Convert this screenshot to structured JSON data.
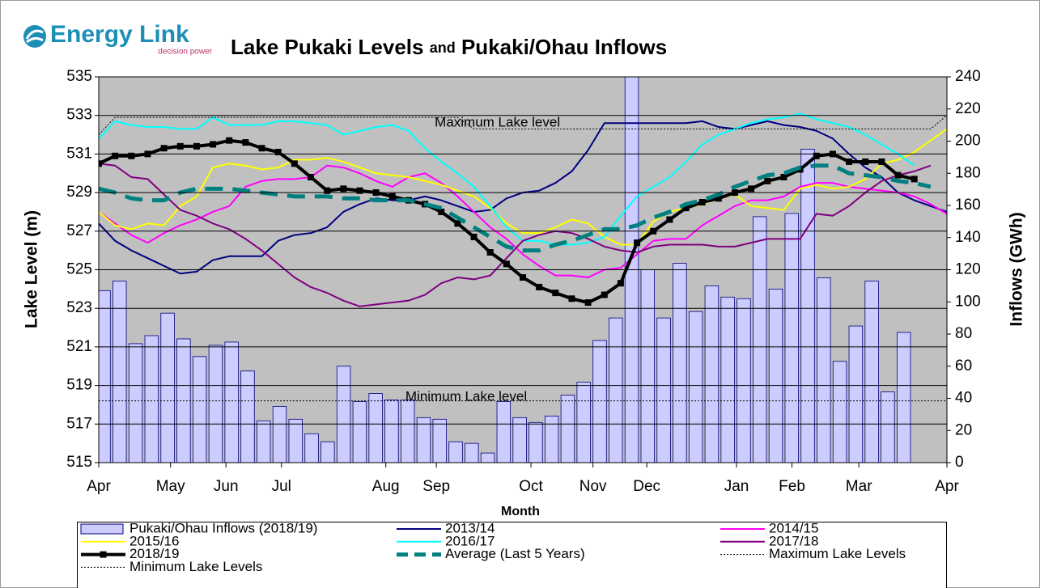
{
  "logo": {
    "name": "Energy Link",
    "tagline": "decision power"
  },
  "chart_data": {
    "type": "bar-line",
    "title_parts": [
      "Lake Pukaki Levels",
      "and",
      "Pukaki/Ohau Inflows"
    ],
    "xlabel": "Month",
    "ylabel": "Lake Level (m)",
    "y2label": "Inflows (GWh)",
    "xlim": [
      0,
      52
    ],
    "xticks": [
      {
        "value": 0,
        "label": "Apr"
      },
      {
        "value": 4.4,
        "label": "May"
      },
      {
        "value": 7.8,
        "label": "Jun"
      },
      {
        "value": 11.2,
        "label": "Jul"
      },
      {
        "value": 17.6,
        "label": "Aug"
      },
      {
        "value": 20.7,
        "label": "Sep"
      },
      {
        "value": 26.5,
        "label": "Oct"
      },
      {
        "value": 30.3,
        "label": "Nov"
      },
      {
        "value": 33.6,
        "label": "Dec"
      },
      {
        "value": 39.1,
        "label": "Jan"
      },
      {
        "value": 42.5,
        "label": "Feb"
      },
      {
        "value": 46.6,
        "label": "Mar"
      },
      {
        "value": 52,
        "label": "Apr"
      }
    ],
    "ylim": [
      515,
      535
    ],
    "yticks": [
      515,
      517,
      519,
      521,
      523,
      525,
      527,
      529,
      531,
      533,
      535
    ],
    "y2lim": [
      0,
      240
    ],
    "y2ticks": [
      0,
      20,
      40,
      60,
      80,
      100,
      120,
      140,
      160,
      180,
      200,
      220,
      240
    ],
    "grid": true,
    "annotations": [
      {
        "text": "Maximum Lake level",
        "x": 20.6,
        "y": 532.6
      },
      {
        "text": "Minimum Lake level",
        "x": 18.8,
        "y": 518.4
      }
    ],
    "bars": {
      "name": "Pukaki/Ohau Inflows (2018/19)",
      "color": "#ccccff",
      "axis": "y2",
      "values": [
        107,
        113,
        74,
        79,
        93,
        77,
        66,
        73,
        75,
        57,
        26,
        35,
        27,
        18,
        13,
        60,
        38,
        43,
        39,
        39,
        28,
        27,
        13,
        12,
        6,
        38,
        28,
        25,
        29,
        42,
        50,
        76,
        90,
        260,
        120,
        90,
        124,
        94,
        110,
        103,
        102,
        153,
        108,
        155,
        195,
        115,
        63,
        85,
        113,
        44,
        81,
        0
      ]
    },
    "x": [
      0,
      1,
      2,
      3,
      4,
      5,
      6,
      7,
      8,
      9,
      10,
      11,
      12,
      13,
      14,
      15,
      16,
      17,
      18,
      19,
      20,
      21,
      22,
      23,
      24,
      25,
      26,
      27,
      28,
      29,
      30,
      31,
      32,
      33,
      34,
      35,
      36,
      37,
      38,
      39,
      40,
      41,
      42,
      43,
      44,
      45,
      46,
      47,
      48,
      49,
      50,
      51,
      52
    ],
    "series": [
      {
        "name": "2013/14",
        "color": "#000080",
        "width": 2,
        "values": [
          527.4,
          526.5,
          526.0,
          525.6,
          525.2,
          524.8,
          524.9,
          525.5,
          525.7,
          525.7,
          525.7,
          526.5,
          526.8,
          526.9,
          527.2,
          528.0,
          528.4,
          528.7,
          528.6,
          528.6,
          528.8,
          528.6,
          528.3,
          528.0,
          528.1,
          528.7,
          529.0,
          529.1,
          529.5,
          530.1,
          531.2,
          532.6,
          532.6,
          532.6,
          532.6,
          532.6,
          532.6,
          532.7,
          532.4,
          532.3,
          532.5,
          532.7,
          532.5,
          532.4,
          532.2,
          531.8,
          531.0,
          530.3,
          529.8,
          529.0,
          528.6,
          528.3,
          528.0
        ]
      },
      {
        "name": "2014/15",
        "color": "#ff00ff",
        "width": 2,
        "values": [
          528.0,
          527.4,
          526.8,
          526.4,
          526.9,
          527.3,
          527.6,
          528.0,
          528.3,
          529.3,
          529.6,
          529.7,
          529.7,
          529.8,
          530.4,
          530.3,
          530.0,
          529.6,
          529.3,
          529.8,
          530.0,
          529.5,
          528.8,
          528.0,
          527.2,
          526.6,
          525.8,
          525.2,
          524.7,
          524.7,
          524.6,
          525.0,
          525.1,
          525.8,
          526.5,
          526.6,
          526.6,
          527.3,
          527.8,
          528.3,
          528.6,
          528.6,
          528.8,
          529.3,
          529.5,
          529.5,
          529.3,
          529.2,
          529.1,
          529.0,
          528.8,
          528.4,
          527.9
        ]
      },
      {
        "name": "2015/16",
        "color": "#ffff00",
        "width": 2,
        "values": [
          528.0,
          527.3,
          527.1,
          527.4,
          527.3,
          528.3,
          528.8,
          530.3,
          530.5,
          530.4,
          530.2,
          530.3,
          530.7,
          530.7,
          530.8,
          530.6,
          530.3,
          530.0,
          529.9,
          529.8,
          529.6,
          529.4,
          529.1,
          528.8,
          528.2,
          527.4,
          526.9,
          526.9,
          527.2,
          527.6,
          527.4,
          526.7,
          526.3,
          526.3,
          527.5,
          528.0,
          528.2,
          528.4,
          528.7,
          528.9,
          528.3,
          528.2,
          528.1,
          529.2,
          529.4,
          529.2,
          529.3,
          529.7,
          530.5,
          530.7,
          531.1,
          531.7,
          532.3
        ]
      },
      {
        "name": "2016/17",
        "color": "#00ffff",
        "width": 2,
        "values": [
          531.8,
          532.7,
          532.5,
          532.4,
          532.4,
          532.3,
          532.3,
          532.9,
          532.5,
          532.5,
          532.5,
          532.7,
          532.7,
          532.6,
          532.5,
          532.0,
          532.2,
          532.4,
          532.5,
          532.2,
          531.3,
          530.6,
          530.0,
          529.3,
          528.3,
          527.2,
          526.5,
          526.5,
          526.3,
          526.3,
          526.4,
          526.7,
          527.8,
          528.8,
          529.3,
          529.8,
          530.6,
          531.5,
          532.0,
          532.3,
          532.6,
          532.8,
          532.9,
          533.1,
          532.8,
          532.6,
          532.4,
          532.0,
          531.5,
          531.0,
          530.4,
          null,
          null
        ]
      },
      {
        "name": "2017/18",
        "color": "#800080",
        "width": 2,
        "values": [
          530.5,
          530.4,
          529.8,
          529.7,
          528.9,
          528.1,
          527.8,
          527.4,
          527.1,
          526.6,
          526.0,
          525.3,
          524.6,
          524.1,
          523.8,
          523.4,
          523.1,
          523.2,
          523.3,
          523.4,
          523.7,
          524.3,
          524.6,
          524.5,
          524.7,
          525.6,
          526.5,
          526.8,
          527.0,
          526.9,
          526.6,
          526.2,
          526.0,
          525.9,
          526.2,
          526.3,
          526.3,
          526.3,
          526.2,
          526.2,
          526.4,
          526.6,
          526.6,
          526.6,
          527.9,
          527.8,
          528.3,
          529.0,
          529.6,
          529.9,
          530.1,
          530.4,
          null
        ]
      },
      {
        "name": "2018/19",
        "color": "#000000",
        "width": 4,
        "markers": true,
        "values": [
          530.5,
          530.9,
          530.9,
          531.0,
          531.3,
          531.4,
          531.4,
          531.5,
          531.7,
          531.6,
          531.3,
          531.1,
          530.5,
          529.8,
          529.1,
          529.2,
          529.1,
          529.0,
          528.8,
          528.6,
          528.4,
          528.0,
          527.4,
          526.7,
          525.9,
          525.3,
          524.6,
          524.1,
          523.8,
          523.5,
          523.3,
          523.7,
          524.3,
          526.4,
          527.0,
          527.6,
          528.2,
          528.5,
          528.7,
          529.0,
          529.2,
          529.6,
          529.8,
          530.2,
          530.9,
          531.0,
          530.6,
          530.6,
          530.6,
          529.9,
          529.7,
          null,
          null
        ]
      },
      {
        "name": "Average (Last 5 Years)",
        "color": "#008080",
        "width": 5,
        "dash": "dashed",
        "values": [
          529.2,
          529.0,
          528.7,
          528.6,
          528.6,
          529.0,
          529.2,
          529.2,
          529.2,
          529.1,
          529.0,
          528.9,
          528.8,
          528.8,
          528.8,
          528.7,
          528.7,
          528.6,
          528.6,
          528.6,
          528.4,
          528.2,
          527.7,
          527.2,
          526.7,
          526.2,
          526.0,
          526.0,
          526.3,
          526.5,
          526.8,
          527.1,
          527.1,
          527.3,
          527.7,
          528.0,
          528.4,
          528.6,
          528.9,
          529.3,
          529.6,
          529.9,
          530.0,
          530.3,
          530.4,
          530.4,
          530.0,
          529.9,
          529.8,
          529.6,
          529.5,
          529.3,
          null
        ]
      },
      {
        "name": "Maximum Lake  Levels",
        "color": "#000000",
        "width": 1,
        "dash": "dotted",
        "x": [
          0,
          1,
          22,
          23,
          51,
          52
        ],
        "values": [
          532.0,
          532.9,
          532.9,
          532.3,
          532.3,
          533.0
        ]
      },
      {
        "name": "Minimum Lake Levels",
        "color": "#000000",
        "width": 1,
        "dash": "dotted",
        "x": [
          0,
          52
        ],
        "values": [
          518.2,
          518.2
        ]
      }
    ]
  }
}
